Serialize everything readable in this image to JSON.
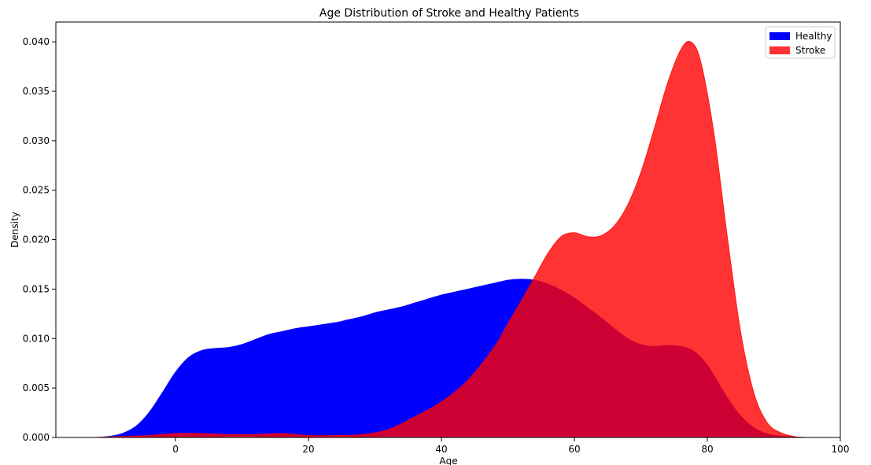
{
  "chart_data": {
    "type": "area",
    "title": "Age Distribution of Stroke and Healthy Patients",
    "xlabel": "Age",
    "ylabel": "Density",
    "xlim": [
      -18,
      100
    ],
    "ylim": [
      0,
      0.042
    ],
    "xticks": [
      0,
      20,
      40,
      60,
      80,
      100
    ],
    "yticks": [
      0.0,
      0.005,
      0.01,
      0.015,
      0.02,
      0.025,
      0.03,
      0.035,
      0.04
    ],
    "ytick_labels": [
      "0.000",
      "0.005",
      "0.010",
      "0.015",
      "0.020",
      "0.025",
      "0.030",
      "0.035",
      "0.040"
    ],
    "xtick_labels": [
      "0",
      "20",
      "40",
      "60",
      "80",
      "100"
    ],
    "grid": false,
    "legend_position": "top-right",
    "series": [
      {
        "name": "Healthy",
        "color": "#0000ff",
        "opacity": 1.0,
        "x": [
          -12,
          -10,
          -8,
          -6,
          -4,
          -2,
          0,
          2,
          4,
          6,
          8,
          10,
          12,
          14,
          16,
          18,
          20,
          22,
          24,
          26,
          28,
          30,
          32,
          34,
          36,
          38,
          40,
          42,
          44,
          46,
          48,
          50,
          52,
          54,
          56,
          58,
          60,
          62,
          64,
          66,
          68,
          70,
          72,
          74,
          76,
          78,
          80,
          82,
          84,
          86,
          88,
          90,
          92,
          94
        ],
        "y": [
          0.0,
          0.0001,
          0.0004,
          0.0011,
          0.0025,
          0.0045,
          0.0066,
          0.0081,
          0.0088,
          0.009,
          0.0091,
          0.0094,
          0.0099,
          0.0104,
          0.0107,
          0.011,
          0.0112,
          0.0114,
          0.0116,
          0.0119,
          0.0122,
          0.0126,
          0.0129,
          0.0132,
          0.0136,
          0.014,
          0.0144,
          0.0147,
          0.015,
          0.0153,
          0.0156,
          0.0159,
          0.016,
          0.0159,
          0.0155,
          0.0149,
          0.0141,
          0.0131,
          0.0121,
          0.011,
          0.01,
          0.0094,
          0.0092,
          0.0093,
          0.0092,
          0.0087,
          0.0073,
          0.0051,
          0.003,
          0.0015,
          0.0006,
          0.0002,
          0.0001,
          0.0
        ]
      },
      {
        "name": "Stroke",
        "color": "#ff0000",
        "opacity": 0.8,
        "x": [
          -12,
          -8,
          -4,
          0,
          4,
          8,
          12,
          16,
          20,
          24,
          28,
          32,
          36,
          40,
          44,
          48,
          50,
          52,
          54,
          56,
          58,
          60,
          62,
          64,
          66,
          68,
          70,
          72,
          74,
          76,
          77.5,
          79,
          81,
          83,
          85,
          87,
          89,
          91,
          93,
          95
        ],
        "y": [
          0.0,
          0.0001,
          0.0002,
          0.0004,
          0.0004,
          0.0003,
          0.0003,
          0.0004,
          0.0002,
          0.0002,
          0.0003,
          0.0008,
          0.0021,
          0.0036,
          0.0058,
          0.0092,
          0.0115,
          0.0138,
          0.0162,
          0.0186,
          0.0203,
          0.0207,
          0.0203,
          0.0204,
          0.0214,
          0.0235,
          0.0268,
          0.0312,
          0.0358,
          0.0392,
          0.04,
          0.038,
          0.0307,
          0.0203,
          0.0107,
          0.0045,
          0.0015,
          0.0005,
          0.0001,
          0.0
        ]
      }
    ]
  }
}
